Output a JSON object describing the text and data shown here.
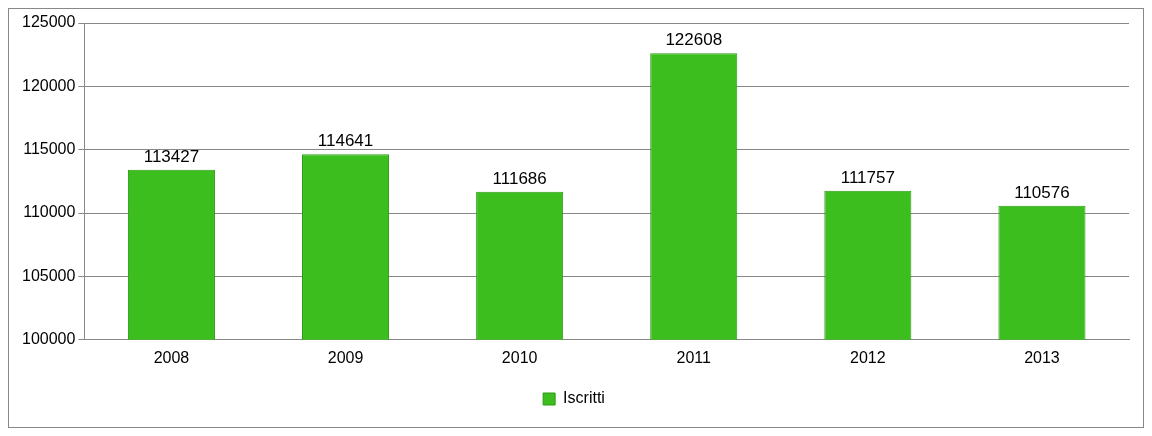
{
  "chart_data": {
    "type": "bar",
    "categories": [
      "2008",
      "2009",
      "2010",
      "2011",
      "2012",
      "2013"
    ],
    "series": [
      {
        "name": "Iscritti",
        "color": "#3cbf1e",
        "values": [
          113427,
          114641,
          111686,
          122608,
          111757,
          110576
        ]
      }
    ],
    "ylim": [
      100000,
      125000
    ],
    "yticks": [
      100000,
      105000,
      110000,
      115000,
      120000,
      125000
    ],
    "grid": "y",
    "legend": "bottom",
    "data_labels": true
  }
}
